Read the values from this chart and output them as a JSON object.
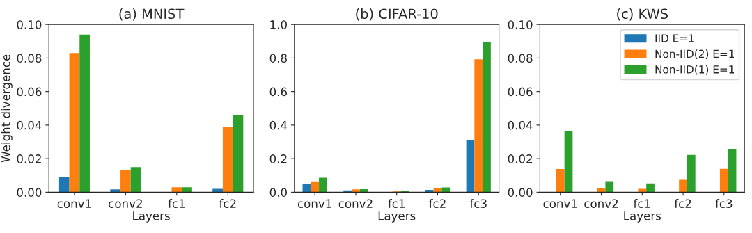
{
  "chart_data": [
    {
      "type": "bar",
      "title": "(a) MNIST",
      "xlabel": "Layers",
      "ylabel": "Weight divergence",
      "categories": [
        "conv1",
        "conv2",
        "fc1",
        "fc2"
      ],
      "ylim": [
        0,
        0.1
      ],
      "yticks": [
        {
          "value": 0,
          "label": "0.00"
        },
        {
          "value": 0.02,
          "label": "0.02"
        },
        {
          "value": 0.04,
          "label": "0.04"
        },
        {
          "value": 0.06,
          "label": "0.06"
        },
        {
          "value": 0.08,
          "label": "0.08"
        },
        {
          "value": 0.1,
          "label": "0.10"
        }
      ],
      "grid": false,
      "legend": false,
      "series": [
        {
          "color": "#1f77b4",
          "values": [
            0.009,
            0.0017,
            null,
            0.002
          ]
        },
        {
          "color": "#ff7f0e",
          "values": [
            0.083,
            0.013,
            0.003,
            0.039
          ]
        },
        {
          "color": "#2ca02c",
          "values": [
            0.094,
            0.015,
            0.003,
            0.046
          ]
        }
      ]
    },
    {
      "type": "bar",
      "title": "(b) CIFAR-10",
      "xlabel": "Layers",
      "categories": [
        "conv1",
        "conv2",
        "fc1",
        "fc2",
        "fc3"
      ],
      "ylim": [
        0,
        1.0
      ],
      "yticks": [
        {
          "value": 0,
          "label": "0.0"
        },
        {
          "value": 0.2,
          "label": "0.2"
        },
        {
          "value": 0.4,
          "label": "0.4"
        },
        {
          "value": 0.6,
          "label": "0.6"
        },
        {
          "value": 0.8,
          "label": "0.8"
        },
        {
          "value": 1.0,
          "label": "1.0"
        }
      ],
      "grid": false,
      "legend": false,
      "series": [
        {
          "color": "#1f77b4",
          "values": [
            0.048,
            0.011,
            null,
            0.014,
            0.309
          ]
        },
        {
          "color": "#ff7f0e",
          "values": [
            0.065,
            0.017,
            0.005,
            0.024,
            0.792
          ]
        },
        {
          "color": "#2ca02c",
          "values": [
            0.087,
            0.018,
            0.007,
            0.028,
            0.897
          ]
        }
      ]
    },
    {
      "type": "bar",
      "title": "(c) KWS",
      "xlabel": "Layers",
      "categories": [
        "conv1",
        "conv2",
        "fc1",
        "fc2",
        "fc3"
      ],
      "ylim": [
        0,
        0.1
      ],
      "yticks": [
        {
          "value": 0,
          "label": "0.00"
        },
        {
          "value": 0.02,
          "label": "0.02"
        },
        {
          "value": 0.04,
          "label": "0.04"
        },
        {
          "value": 0.06,
          "label": "0.06"
        },
        {
          "value": 0.08,
          "label": "0.08"
        },
        {
          "value": 0.1,
          "label": "0.10"
        }
      ],
      "grid": false,
      "legend": "top right",
      "series": [
        {
          "name": "IID E=1",
          "color": "#1f77b4",
          "values": [
            null,
            null,
            null,
            null,
            null
          ]
        },
        {
          "name": "Non-IID(2) E=1",
          "color": "#ff7f0e",
          "values": [
            0.0138,
            0.0025,
            0.002,
            0.0074,
            0.0139
          ]
        },
        {
          "name": "Non-IID(1) E=1",
          "color": "#2ca02c",
          "values": [
            0.0366,
            0.0066,
            0.0052,
            0.0222,
            0.0259
          ]
        }
      ]
    }
  ]
}
